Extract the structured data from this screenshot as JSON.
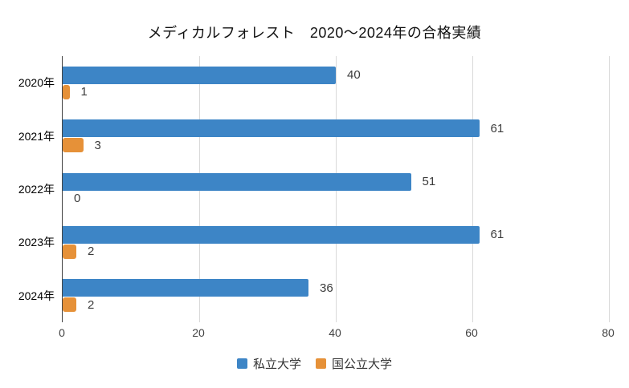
{
  "page": {
    "background": "#ffffff"
  },
  "chart_data": {
    "type": "bar",
    "orientation": "horizontal",
    "title": "メディカルフォレスト　2020〜2024年の合格実績",
    "categories": [
      "2020年",
      "2021年",
      "2022年",
      "2023年",
      "2024年"
    ],
    "series": [
      {
        "name": "私立大学",
        "color": "#3d85c6",
        "values": [
          40,
          61,
          51,
          61,
          36
        ]
      },
      {
        "name": "国公立大学",
        "color": "#e69138",
        "values": [
          1,
          3,
          0,
          2,
          2
        ]
      }
    ],
    "xlim": [
      0,
      80
    ],
    "xticks": [
      0,
      20,
      40,
      60,
      80
    ],
    "grid": true,
    "value_labels": true,
    "legend_position": "bottom",
    "axis_color": "#424242",
    "gridline_color": "#d9d9d9",
    "tick_label_color": "#424242",
    "value_label_color": "#3b3b3b",
    "background": "#ffffff"
  }
}
